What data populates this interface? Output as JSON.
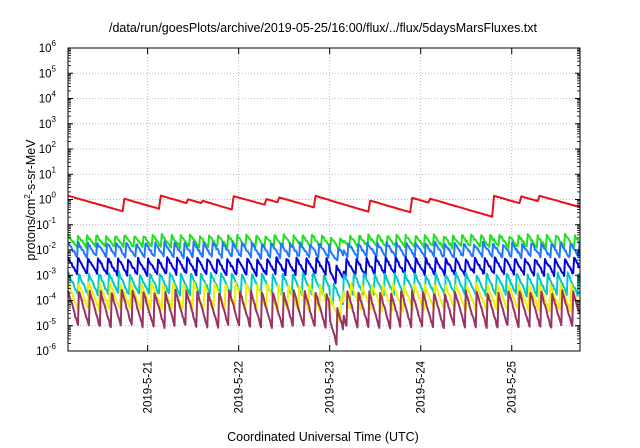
{
  "chart_data": {
    "type": "line",
    "title": "/data/run/goesPlots/archive/2019-05-25/16:00/flux/../flux/5daysMarsFluxes.txt",
    "xlabel": "Coordinated Universal Time (UTC)",
    "ylabel_main": "protons/cm",
    "ylabel_sup": "2",
    "ylabel_rest": "-s-sr-MeV",
    "yscale": "log",
    "ylim_exp": [
      -6,
      6
    ],
    "y_ticks": [
      {
        "base": "10",
        "exp": "-6"
      },
      {
        "base": "10",
        "exp": "-5"
      },
      {
        "base": "10",
        "exp": "-4"
      },
      {
        "base": "10",
        "exp": "-3"
      },
      {
        "base": "10",
        "exp": "-2"
      },
      {
        "base": "10",
        "exp": "-1"
      },
      {
        "base": "10",
        "exp": "0"
      },
      {
        "base": "10",
        "exp": "1"
      },
      {
        "base": "10",
        "exp": "2"
      },
      {
        "base": "10",
        "exp": "3"
      },
      {
        "base": "10",
        "exp": "4"
      },
      {
        "base": "10",
        "exp": "5"
      },
      {
        "base": "10",
        "exp": "6"
      }
    ],
    "x_range_days": [
      "2019-05-20 03:00",
      "2019-05-25 18:00"
    ],
    "x_ticks": [
      "2019-5-21",
      "2019-5-22",
      "2019-5-23",
      "2019-5-24",
      "2019-5-25"
    ],
    "grid": true,
    "series": [
      {
        "color": "#e8101a",
        "min_log": -1.0,
        "max_log": -0.1,
        "note_shape": "slow sawtooth"
      },
      {
        "color": "#20e020",
        "min_log": -1.9,
        "max_log": -1.4
      },
      {
        "color": "#1f78ff",
        "min_log": -2.3,
        "max_log": -1.7
      },
      {
        "color": "#0000dd",
        "min_log": -3.0,
        "max_log": -2.3
      },
      {
        "color": "#00c8c8",
        "min_log": -3.8,
        "max_log": -2.9
      },
      {
        "color": "#f0f000",
        "min_log": -4.4,
        "max_log": -3.3
      },
      {
        "color": "#993366",
        "min_log": -5.1,
        "max_log": -3.6
      }
    ]
  }
}
